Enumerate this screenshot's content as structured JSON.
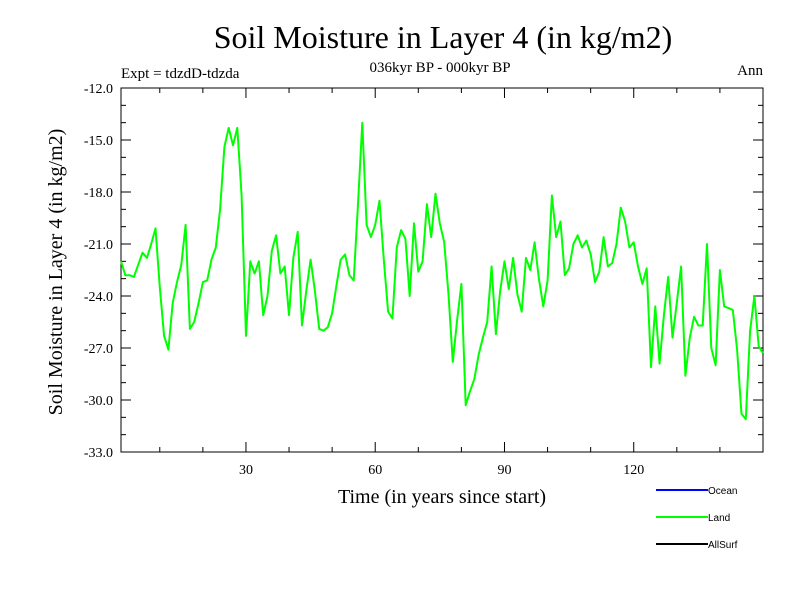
{
  "chart_data": {
    "type": "line",
    "title": "Soil Moisture in Layer 4 (in kg/m2)",
    "subtitle": "036kyr BP - 000kyr BP",
    "experiment": "Expt = tdzdD-tdzda",
    "season": "Ann",
    "xlabel": "Time (in years since start)",
    "ylabel": "Soil Moisture in Layer 4 (in kg/m2)",
    "xlim": [
      1,
      150
    ],
    "ylim": [
      -33.0,
      -12.0
    ],
    "x_ticks": [
      30,
      60,
      90,
      120
    ],
    "y_ticks": [
      -33.0,
      -30.0,
      -27.0,
      -24.0,
      -21.0,
      -18.0,
      -15.0,
      -12.0
    ],
    "x_tick_labels": [
      "30",
      "60",
      "90",
      "120"
    ],
    "y_tick_labels": [
      "-33.0",
      "-30.0",
      "-27.0",
      "-24.0",
      "-21.0",
      "-18.0",
      "-15.0",
      "-12.0"
    ],
    "legend": [
      {
        "name": "Ocean",
        "color": "#0000ff"
      },
      {
        "name": "Land",
        "color": "#00ff00"
      },
      {
        "name": "AllSurf",
        "color": "#000000"
      }
    ],
    "series": [
      {
        "name": "Land",
        "color": "#00ff00",
        "values": [
          -22.0,
          -22.8,
          -22.8,
          -22.9,
          -22.2,
          -21.5,
          -21.8,
          -21.0,
          -20.1,
          -23.5,
          -26.3,
          -27.1,
          -24.4,
          -23.2,
          -22.2,
          -19.9,
          -25.9,
          -25.5,
          -24.4,
          -23.2,
          -23.1,
          -21.9,
          -21.2,
          -19.0,
          -15.4,
          -14.3,
          -15.3,
          -14.3,
          -18.2,
          -26.3,
          -22.0,
          -22.7,
          -22.0,
          -25.1,
          -24.0,
          -21.4,
          -20.5,
          -22.7,
          -22.3,
          -25.1,
          -21.8,
          -20.3,
          -25.7,
          -23.7,
          -21.9,
          -23.7,
          -25.9,
          -26.0,
          -25.8,
          -25.0,
          -23.4,
          -21.9,
          -21.6,
          -22.8,
          -23.1,
          -18.7,
          -14.0,
          -19.9,
          -20.6,
          -19.9,
          -18.5,
          -21.9,
          -24.9,
          -25.3,
          -21.2,
          -20.2,
          -20.7,
          -24.0,
          -19.8,
          -22.6,
          -22.0,
          -18.7,
          -20.6,
          -18.1,
          -19.8,
          -20.9,
          -23.9,
          -27.8,
          -25.4,
          -23.3,
          -30.3,
          -29.5,
          -28.8,
          -27.4,
          -26.4,
          -25.5,
          -22.3,
          -26.2,
          -23.7,
          -22.0,
          -23.6,
          -21.8,
          -23.9,
          -24.9,
          -21.8,
          -22.5,
          -20.9,
          -23.0,
          -24.6,
          -23.1,
          -18.2,
          -20.6,
          -19.7,
          -22.8,
          -22.4,
          -21.0,
          -20.5,
          -21.2,
          -20.8,
          -21.6,
          -23.2,
          -22.6,
          -20.6,
          -22.3,
          -22.1,
          -21.0,
          -18.9,
          -19.7,
          -21.2,
          -20.9,
          -22.3,
          -23.3,
          -22.4,
          -28.1,
          -24.6,
          -27.9,
          -25.1,
          -22.9,
          -26.4,
          -24.4,
          -22.3,
          -28.6,
          -26.4,
          -25.2,
          -25.7,
          -25.7,
          -21.0,
          -27.0,
          -28.0,
          -22.5,
          -24.6,
          -24.7,
          -24.8,
          -27.1,
          -30.8,
          -31.1,
          -26.0,
          -24.0,
          -26.9,
          -27.3
        ]
      }
    ]
  }
}
